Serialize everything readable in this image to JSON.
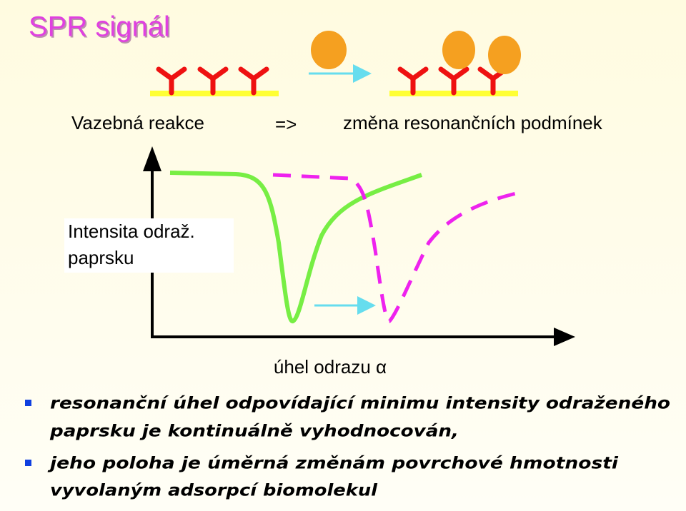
{
  "title": "SPR signál",
  "reaction": {
    "left": "Vazebná reakce",
    "arrow": "=>",
    "right": "změna resonančních podmínek"
  },
  "graph": {
    "y_label": [
      "Intensita odraž.",
      "paprsku"
    ],
    "x_label": "úhel odrazu α"
  },
  "bullets": [
    {
      "lines": [
        "resonanční úhel odpovídající minimu intensity odraženého",
        "paprsku je kontinuálně vyhodnocován,"
      ]
    },
    {
      "lines": [
        "jeho poloha je úměrná změnám povrchové hmotnosti",
        "vyvolaným adsorpcí biomolekul"
      ]
    }
  ]
}
